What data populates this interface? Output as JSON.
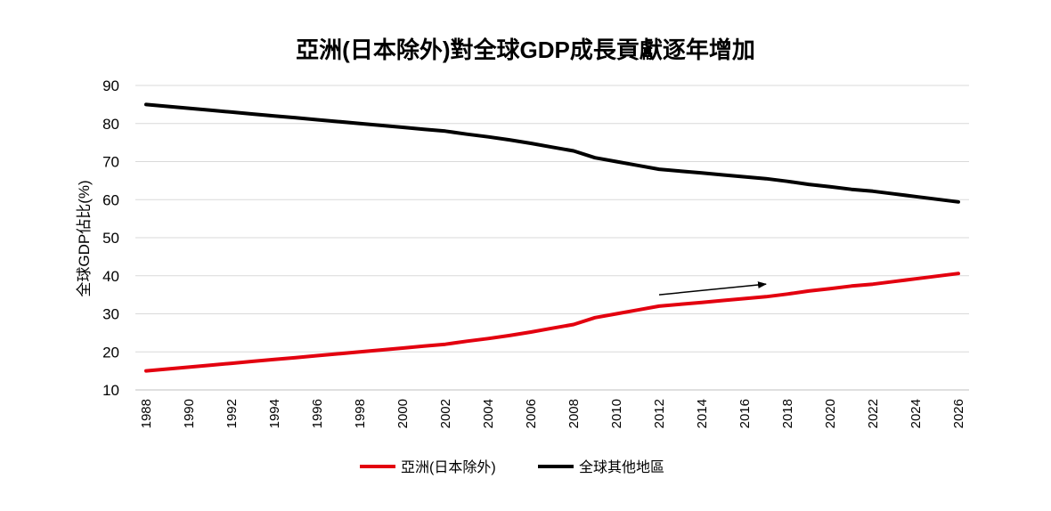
{
  "chart_data": {
    "type": "line",
    "title": "亞洲(日本除外)對全球GDP成長貢獻逐年增加",
    "xlabel": "",
    "ylabel": "全球GDP佔比(%)",
    "ylim": [
      10,
      90
    ],
    "yticks": [
      10,
      20,
      30,
      40,
      50,
      60,
      70,
      80,
      90
    ],
    "grid": true,
    "legend_position": "bottom",
    "x": [
      1988,
      1989,
      1990,
      1991,
      1992,
      1993,
      1994,
      1995,
      1996,
      1997,
      1998,
      1999,
      2000,
      2001,
      2002,
      2003,
      2004,
      2005,
      2006,
      2007,
      2008,
      2009,
      2010,
      2011,
      2012,
      2013,
      2014,
      2015,
      2016,
      2017,
      2018,
      2019,
      2020,
      2021,
      2022,
      2023,
      2024,
      2025,
      2026
    ],
    "xtick_labels": [
      "1988",
      "1990",
      "1992",
      "1994",
      "1996",
      "1998",
      "2000",
      "2002",
      "2004",
      "2006",
      "2008",
      "2010",
      "2012",
      "2014",
      "2016",
      "2018",
      "2020",
      "2022",
      "2024",
      "2026"
    ],
    "series": [
      {
        "name": "亞洲(日本除外)",
        "color": "#e3000f",
        "values": [
          15,
          15.5,
          16,
          16.5,
          17,
          17.5,
          18,
          18.5,
          19,
          19.5,
          20,
          20.5,
          21,
          21.5,
          22,
          22.8,
          23.5,
          24.3,
          25.2,
          26.2,
          27.2,
          29,
          30,
          31,
          32,
          32.5,
          33,
          33.5,
          34,
          34.5,
          35.2,
          36,
          36.6,
          37.3,
          37.8,
          38.5,
          39.2,
          39.9,
          40.6
        ]
      },
      {
        "name": "全球其他地區",
        "color": "#000000",
        "values": [
          85,
          84.5,
          84,
          83.5,
          83,
          82.5,
          82,
          81.5,
          81,
          80.5,
          80,
          79.5,
          79,
          78.5,
          78,
          77.2,
          76.5,
          75.7,
          74.8,
          73.8,
          72.8,
          71,
          70,
          69,
          68,
          67.5,
          67,
          66.5,
          66,
          65.5,
          64.8,
          64,
          63.4,
          62.7,
          62.2,
          61.5,
          60.8,
          60.1,
          59.4
        ]
      }
    ],
    "annotations": [
      {
        "type": "arrow",
        "from": [
          2012,
          35
        ],
        "to": [
          2017,
          37.8
        ],
        "color": "#000000"
      }
    ]
  }
}
